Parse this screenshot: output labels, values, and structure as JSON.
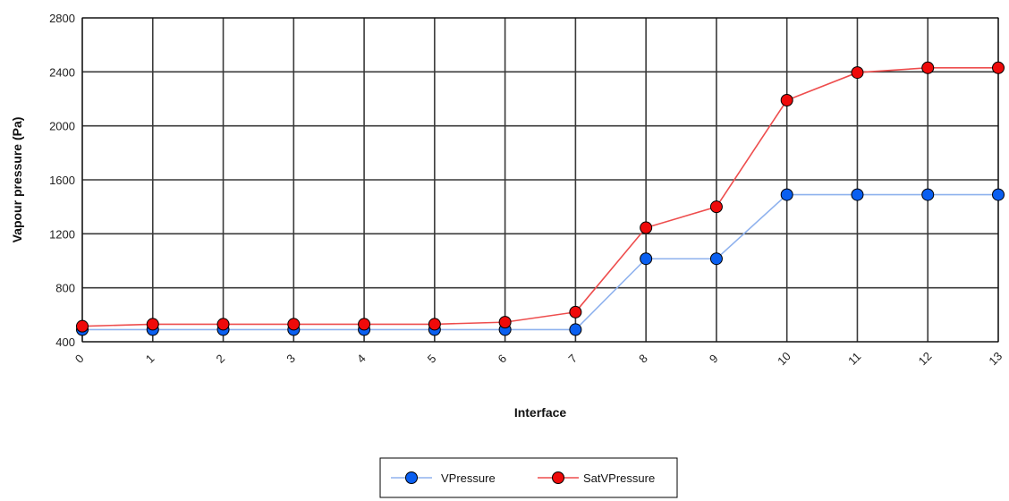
{
  "chart_data": {
    "type": "line",
    "xlabel": "Interface",
    "ylabel": "Vapour pressure (Pa)",
    "categories": [
      "0",
      "1",
      "2",
      "3",
      "4",
      "5",
      "6",
      "7",
      "8",
      "9",
      "10",
      "11",
      "12",
      "13"
    ],
    "y_ticks": [
      "400",
      "800",
      "1200",
      "1600",
      "2000",
      "2400",
      "2800"
    ],
    "ylim": [
      400,
      2800
    ],
    "grid": true,
    "legend_position": "bottom-center",
    "series": [
      {
        "name": "VPressure",
        "color": "#0a5ff0",
        "line_color": "#8fb2ee",
        "values": [
          490,
          490,
          490,
          490,
          490,
          490,
          490,
          490,
          1015,
          1015,
          1490,
          1490,
          1490,
          1490
        ]
      },
      {
        "name": "SatVPressure",
        "color": "#ef0a0a",
        "line_color": "#ee4d4d",
        "values": [
          515,
          530,
          530,
          530,
          530,
          530,
          545,
          620,
          1245,
          1400,
          2190,
          2395,
          2430,
          2430
        ]
      }
    ]
  }
}
